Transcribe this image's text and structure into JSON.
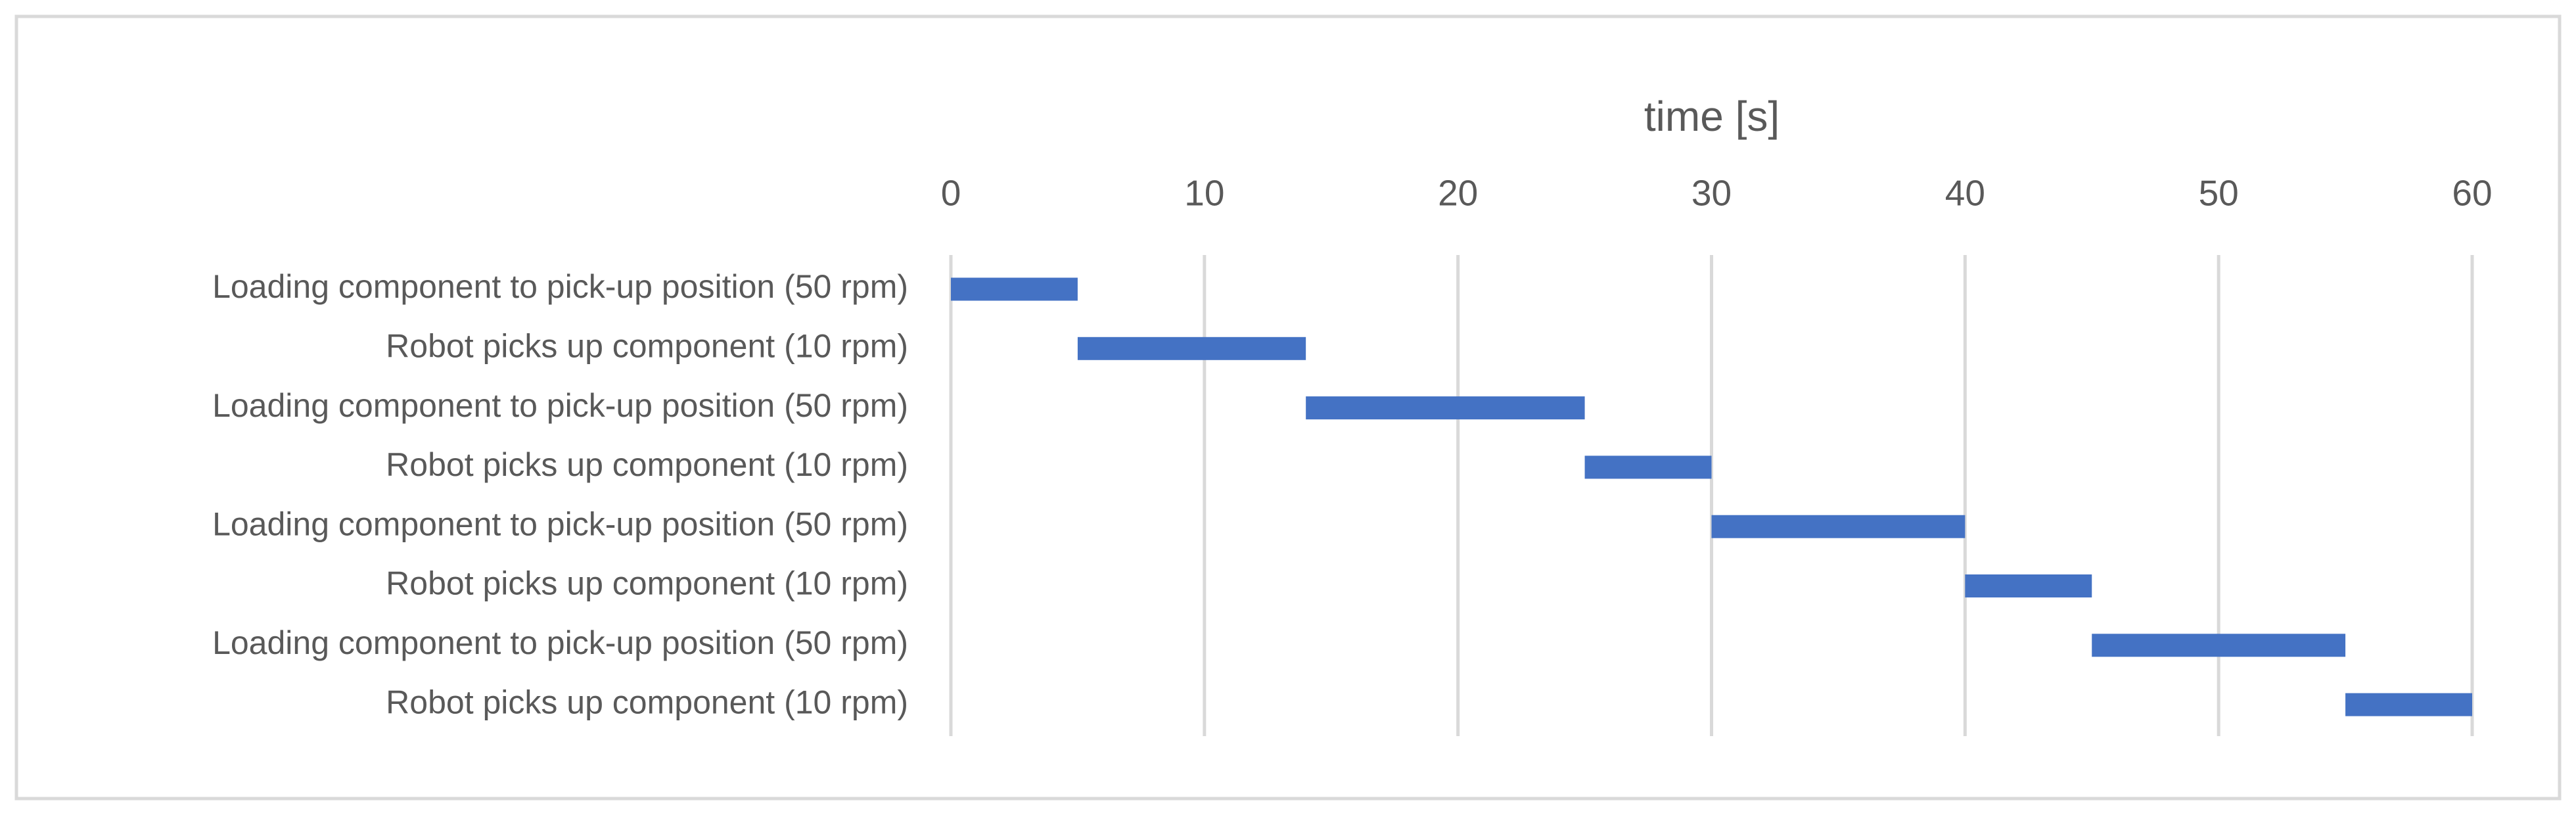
{
  "chart_data": {
    "type": "gantt",
    "xlabel": "time [s]",
    "categories": [
      "Loading component to pick-up position (50 rpm)",
      "Robot picks up component (10 rpm)",
      "Loading component to pick-up position (50 rpm)",
      "Robot picks up component (10 rpm)",
      "Loading component to pick-up position (50 rpm)",
      "Robot picks up component (10 rpm)",
      "Loading component to pick-up position (50 rpm)",
      "Robot picks up component (10 rpm)"
    ],
    "start": [
      0,
      5,
      14,
      25,
      30,
      40,
      45,
      55
    ],
    "end": [
      5,
      14,
      25,
      30,
      40,
      45,
      55,
      60
    ],
    "color": "#4472c4",
    "xlim": [
      0,
      60
    ],
    "xticks": [
      0,
      10,
      20,
      30,
      40,
      50,
      60
    ],
    "grid": true
  }
}
